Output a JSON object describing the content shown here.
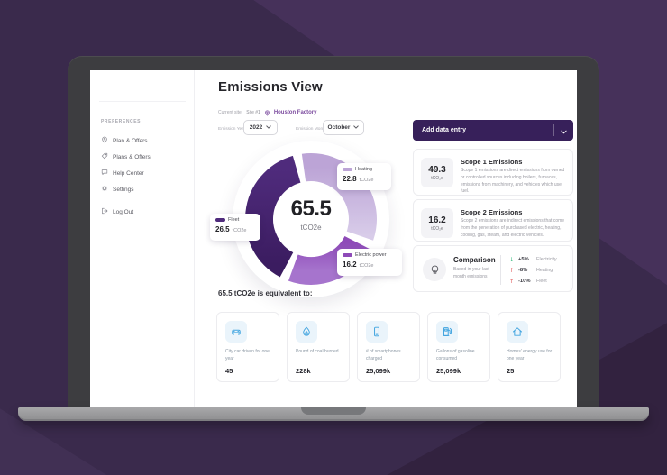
{
  "sidebar": {
    "section_label": "PREFERENCES",
    "items": [
      {
        "icon": "map-pin",
        "label": "Plan & Offers"
      },
      {
        "icon": "offer-tag",
        "label": "Plans & Offers"
      },
      {
        "icon": "chat-bubble",
        "label": "Help Center"
      },
      {
        "icon": "gear",
        "label": "Settings"
      },
      {
        "icon": "logout",
        "label": "Log Out"
      }
    ]
  },
  "header": {
    "title": "Emissions View",
    "current_site_label": "Current site:",
    "site_id": "Site #1",
    "site_name": "Houston Factory"
  },
  "filters": {
    "year_label": "Emission Year",
    "year_value": "2022",
    "month_label": "Emission Month",
    "month_value": "October"
  },
  "actions": {
    "add_data_entry": "Add data entry"
  },
  "chart_data": {
    "type": "pie",
    "style": "donut",
    "center_value": "65.5",
    "center_unit": "tCO2e",
    "unit": "tCO2e",
    "total": 65.5,
    "segments": [
      {
        "label": "Heating",
        "value": 22.8,
        "color": "#BCA4D6",
        "color2": "#D8CCE9"
      },
      {
        "label": "Electric power",
        "value": 16.2,
        "color": "#8E4AB8",
        "color2": "#A674CD"
      },
      {
        "label": "Fleet",
        "value": 26.5,
        "color": "#4F2B7C",
        "color2": "#3B1C60"
      }
    ],
    "legend_position": "around-donut",
    "start_angle_deg": -8,
    "gap_deg": 8
  },
  "equivalence": {
    "heading": "65.5 tCO2e is equivalent to:",
    "items": [
      {
        "icon": "car",
        "label": "City car driven for one year",
        "value": "45"
      },
      {
        "icon": "flame",
        "label": "Pound of coal burned",
        "value": "228k"
      },
      {
        "icon": "smartphone",
        "label": "# of smartphones charged",
        "value": "25,099k"
      },
      {
        "icon": "fuel-pump",
        "label": "Gallons of gasoline consumed",
        "value": "25,099k"
      },
      {
        "icon": "home",
        "label": "Homes' energy use for one year",
        "value": "25"
      }
    ]
  },
  "scopes": [
    {
      "value": "49.3",
      "unit": "tCO₂e",
      "title": "Scope 1 Emissions",
      "description": "Scope 1 emissions are direct emissions from owned or controlled sources including boilers, furnaces, emissions from machinery, and vehicles which use fuel."
    },
    {
      "value": "16.2",
      "unit": "tCO₂e",
      "title": "Scope 2 Emissions",
      "description": "Scope 2 emissions are indirect emissions that come from the generation of purchased electric, heating, cooling, gas, steam, and electric vehicles."
    }
  ],
  "comparison": {
    "title": "Comparison",
    "subtitle": "Based in your last month emissions",
    "rows": [
      {
        "arrow": "↓",
        "arrow_color": "#3CBE82",
        "percent": "+5%",
        "label": "Electricity"
      },
      {
        "arrow": "↑",
        "arrow_color": "#E05A5A",
        "percent": "-8%",
        "label": "Heating"
      },
      {
        "arrow": "↑",
        "arrow_color": "#E05A5A",
        "percent": "-10%",
        "label": "Fleet"
      }
    ]
  },
  "colors": {
    "accent_purple": "#37205A",
    "link_purple": "#7C4C9F",
    "equiv_icon_blue": "#3FA3DF",
    "background_purple": "#3A2A4C"
  }
}
